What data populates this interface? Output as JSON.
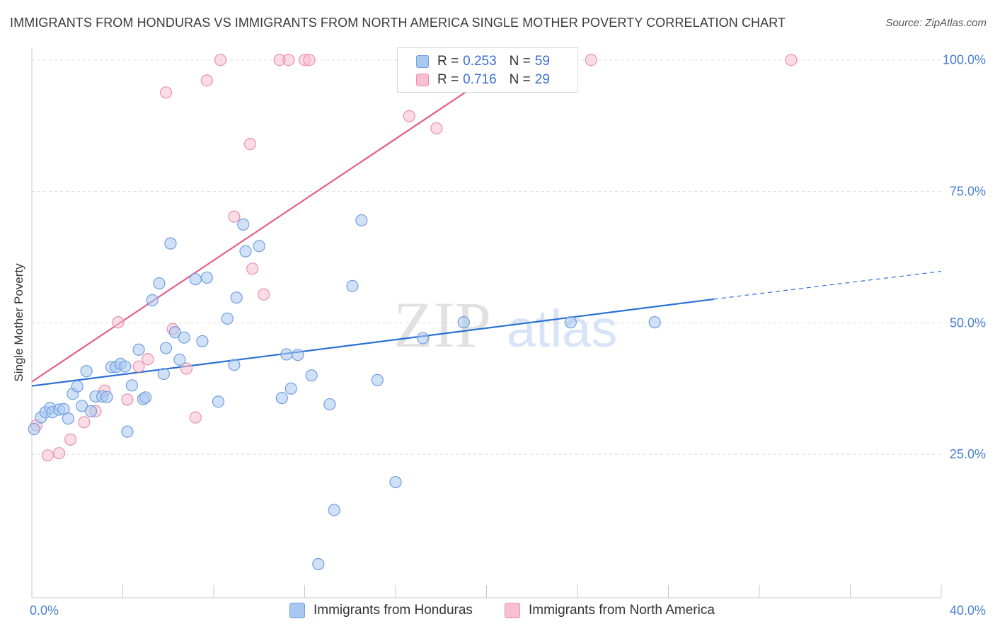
{
  "title": "IMMIGRANTS FROM HONDURAS VS IMMIGRANTS FROM NORTH AMERICA SINGLE MOTHER POVERTY CORRELATION CHART",
  "source": "Source: ZipAtlas.com",
  "watermark": {
    "zip": "ZIP",
    "atlas": "atlas"
  },
  "colors": {
    "series1_fill": "#a9c8f0",
    "series1_stroke": "#6f9fe0",
    "series1_line": "#2a6fd4",
    "series2_fill": "#f7bfd0",
    "series2_stroke": "#e891ad",
    "series2_line": "#e0608a",
    "tick_text": "#4a7fd0",
    "grid": "#dcdcdc"
  },
  "legend": {
    "rows": [
      {
        "r_label": "R =",
        "r_value": "0.253",
        "n_label": "N =",
        "n_value": "59"
      },
      {
        "r_label": "R =",
        "r_value": "0.716",
        "n_label": "N =",
        "n_value": "29"
      }
    ]
  },
  "bottom_legend": {
    "items": [
      {
        "label": "Immigrants from Honduras"
      },
      {
        "label": "Immigrants from North America"
      }
    ]
  },
  "chart_data": {
    "type": "scatter",
    "title": "IMMIGRANTS FROM HONDURAS VS IMMIGRANTS FROM NORTH AMERICA SINGLE MOTHER POVERTY CORRELATION CHART",
    "xlabel": "",
    "ylabel": "Single Mother Poverty",
    "xlim": [
      0,
      40
    ],
    "ylim": [
      0,
      104
    ],
    "x_tick_labels": [
      {
        "value": 0,
        "label": "0.0%"
      },
      {
        "value": 40,
        "label": "40.0%"
      }
    ],
    "y_tick_labels": [
      {
        "value": 25,
        "label": "25.0%"
      },
      {
        "value": 50,
        "label": "50.0%"
      },
      {
        "value": 75,
        "label": "75.0%"
      },
      {
        "value": 100,
        "label": "100.0%"
      }
    ],
    "grid": true,
    "legend_position": "top-center",
    "series": [
      {
        "name": "Immigrants from Honduras",
        "R": 0.253,
        "N": 59,
        "trend": {
          "x": [
            0,
            30
          ],
          "y": [
            38.0,
            54.5
          ],
          "dashed_extension_to_x": 40,
          "dashed_extension_y": 59.8
        },
        "points": [
          [
            0.1,
            29.8
          ],
          [
            0.4,
            32.0
          ],
          [
            0.6,
            33.0
          ],
          [
            0.8,
            33.8
          ],
          [
            0.9,
            33.0
          ],
          [
            1.2,
            33.5
          ],
          [
            1.4,
            33.6
          ],
          [
            1.6,
            31.8
          ],
          [
            1.8,
            36.5
          ],
          [
            2.0,
            37.9
          ],
          [
            2.2,
            34.2
          ],
          [
            2.4,
            40.8
          ],
          [
            2.6,
            33.2
          ],
          [
            2.8,
            36.0
          ],
          [
            3.1,
            36.0
          ],
          [
            3.3,
            35.9
          ],
          [
            3.5,
            41.6
          ],
          [
            3.7,
            41.6
          ],
          [
            3.9,
            42.2
          ],
          [
            4.1,
            41.7
          ],
          [
            4.2,
            29.3
          ],
          [
            4.4,
            38.1
          ],
          [
            4.7,
            44.9
          ],
          [
            4.9,
            35.5
          ],
          [
            5.0,
            35.8
          ],
          [
            5.3,
            54.3
          ],
          [
            5.6,
            57.5
          ],
          [
            5.8,
            40.3
          ],
          [
            5.9,
            45.2
          ],
          [
            6.1,
            65.1
          ],
          [
            6.3,
            48.2
          ],
          [
            6.5,
            43.0
          ],
          [
            6.7,
            47.2
          ],
          [
            7.2,
            58.3
          ],
          [
            7.5,
            46.5
          ],
          [
            7.7,
            58.6
          ],
          [
            8.2,
            35.0
          ],
          [
            8.6,
            50.8
          ],
          [
            8.9,
            42.0
          ],
          [
            9.0,
            54.8
          ],
          [
            9.3,
            68.7
          ],
          [
            9.4,
            63.6
          ],
          [
            10.0,
            64.6
          ],
          [
            11.0,
            35.7
          ],
          [
            11.2,
            44.0
          ],
          [
            11.4,
            37.5
          ],
          [
            11.7,
            43.9
          ],
          [
            12.3,
            40.0
          ],
          [
            12.6,
            4.1
          ],
          [
            13.1,
            34.5
          ],
          [
            13.3,
            14.4
          ],
          [
            14.1,
            57.0
          ],
          [
            14.5,
            69.5
          ],
          [
            15.2,
            39.1
          ],
          [
            16.0,
            19.7
          ],
          [
            17.2,
            47.1
          ],
          [
            19.0,
            50.1
          ],
          [
            23.7,
            50.1
          ],
          [
            27.4,
            50.1
          ]
        ]
      },
      {
        "name": "Immigrants from North America",
        "R": 0.716,
        "N": 29,
        "trend": {
          "x": [
            0,
            21.2
          ],
          "y": [
            38.8,
            100.0
          ]
        },
        "points": [
          [
            0.2,
            30.5
          ],
          [
            0.7,
            24.8
          ],
          [
            1.2,
            25.2
          ],
          [
            1.7,
            27.8
          ],
          [
            2.3,
            31.1
          ],
          [
            2.8,
            33.2
          ],
          [
            3.2,
            37.1
          ],
          [
            3.8,
            50.1
          ],
          [
            4.2,
            35.4
          ],
          [
            4.7,
            41.7
          ],
          [
            5.1,
            43.1
          ],
          [
            5.9,
            93.8
          ],
          [
            6.2,
            48.8
          ],
          [
            6.8,
            41.3
          ],
          [
            7.2,
            32.0
          ],
          [
            7.7,
            96.1
          ],
          [
            8.3,
            100.0
          ],
          [
            8.9,
            70.2
          ],
          [
            9.6,
            84.0
          ],
          [
            9.7,
            60.3
          ],
          [
            10.2,
            55.4
          ],
          [
            10.9,
            100.0
          ],
          [
            11.3,
            100.0
          ],
          [
            12.0,
            100.0
          ],
          [
            12.2,
            100.0
          ],
          [
            16.6,
            89.3
          ],
          [
            17.8,
            87.0
          ],
          [
            24.6,
            100.0
          ],
          [
            33.4,
            100.0
          ]
        ]
      }
    ]
  }
}
